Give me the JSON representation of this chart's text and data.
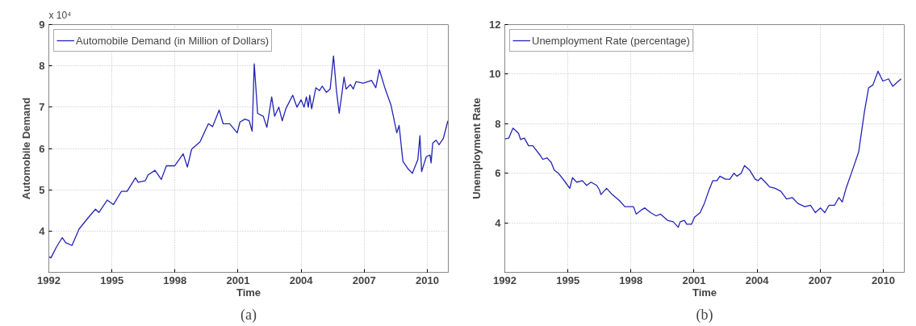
{
  "chart_data": [
    {
      "type": "line",
      "xlabel": "Time",
      "ylabel": "Automobile Demand",
      "annotations": [
        "x 10⁴",
        "(a)"
      ],
      "xlim": [
        1992,
        2011
      ],
      "xticks": [
        1992,
        1995,
        1998,
        2001,
        2004,
        2007,
        2010
      ],
      "ylim": [
        3,
        9
      ],
      "yticks": [
        4,
        5,
        6,
        7,
        8,
        9
      ],
      "grid": true,
      "legend": "top left",
      "line_style": "solid",
      "series": [
        {
          "name": "Automobile Demand (in Million of Dollars)",
          "color": "#2323b4",
          "x": [
            1992.0,
            1992.1,
            1992.37,
            1992.64,
            1992.8,
            1993.1,
            1993.44,
            1993.85,
            1994.22,
            1994.38,
            1994.78,
            1995.07,
            1995.45,
            1995.72,
            1996.12,
            1996.25,
            1996.59,
            1996.72,
            1997.05,
            1997.35,
            1997.59,
            1997.99,
            1998.39,
            1998.59,
            1998.79,
            1999.19,
            1999.59,
            1999.79,
            2000.1,
            2000.29,
            2000.6,
            2000.96,
            2001.09,
            2001.33,
            2001.53,
            2001.67,
            2001.77,
            2001.93,
            2002.2,
            2002.37,
            2002.6,
            2002.74,
            2002.94,
            2003.1,
            2003.27,
            2003.6,
            2003.8,
            2004.0,
            2004.14,
            2004.25,
            2004.34,
            2004.41,
            2004.5,
            2004.7,
            2004.87,
            2005.0,
            2005.2,
            2005.38,
            2005.54,
            2005.68,
            2005.81,
            2005.94,
            2006.04,
            2006.14,
            2006.34,
            2006.48,
            2006.61,
            2006.95,
            2007.35,
            2007.55,
            2007.72,
            2008.0,
            2008.28,
            2008.55,
            2008.66,
            2008.84,
            2009.08,
            2009.29,
            2009.55,
            2009.65,
            2009.73,
            2009.95,
            2010.13,
            2010.18,
            2010.26,
            2010.42,
            2010.56,
            2010.76,
            2010.98
          ],
          "values": [
            3.38,
            3.35,
            3.62,
            3.84,
            3.72,
            3.65,
            4.05,
            4.31,
            4.53,
            4.45,
            4.75,
            4.64,
            4.96,
            4.96,
            5.29,
            5.18,
            5.22,
            5.36,
            5.47,
            5.25,
            5.58,
            5.58,
            5.87,
            5.55,
            5.98,
            6.16,
            6.6,
            6.53,
            6.93,
            6.6,
            6.6,
            6.38,
            6.64,
            6.71,
            6.67,
            6.42,
            8.05,
            6.85,
            6.78,
            6.51,
            7.25,
            6.78,
            7.0,
            6.67,
            6.96,
            7.29,
            7.0,
            7.18,
            7.0,
            7.25,
            7.0,
            7.29,
            6.96,
            7.47,
            7.4,
            7.51,
            7.36,
            7.44,
            8.24,
            7.4,
            6.85,
            7.33,
            7.73,
            7.44,
            7.55,
            7.44,
            7.62,
            7.58,
            7.65,
            7.47,
            7.91,
            7.44,
            7.04,
            6.38,
            6.56,
            5.69,
            5.51,
            5.4,
            5.73,
            6.31,
            5.44,
            5.8,
            5.84,
            5.65,
            6.13,
            6.2,
            6.09,
            6.24,
            6.67
          ]
        }
      ]
    },
    {
      "type": "line",
      "xlabel": "Time",
      "ylabel": "Unemployment Rate",
      "annotations": [
        "(b)"
      ],
      "xlim": [
        1992,
        2011
      ],
      "xticks": [
        1992,
        1995,
        1998,
        2001,
        2004,
        2007,
        2010
      ],
      "ylim": [
        2,
        12
      ],
      "yticks": [
        4,
        6,
        8,
        10,
        12
      ],
      "grid": true,
      "legend": "top left",
      "line_style": "solid",
      "series": [
        {
          "name": "Unemployment Rate (percentage)",
          "color": "#2323b4",
          "x": [
            1992.0,
            1992.19,
            1992.39,
            1992.66,
            1992.75,
            1992.93,
            1993.13,
            1993.33,
            1993.67,
            1993.81,
            1994.01,
            1994.21,
            1994.35,
            1994.55,
            1994.88,
            1995.09,
            1995.22,
            1995.42,
            1995.69,
            1995.89,
            1996.1,
            1996.37,
            1996.5,
            1996.57,
            1996.84,
            1997.11,
            1997.45,
            1997.71,
            1998.12,
            1998.25,
            1998.52,
            1998.66,
            1998.93,
            1999.2,
            1999.4,
            1999.74,
            2000.01,
            2000.25,
            2000.34,
            2000.54,
            2000.65,
            2000.88,
            2001.02,
            2001.29,
            2001.49,
            2001.69,
            2001.89,
            2002.09,
            2002.23,
            2002.5,
            2002.7,
            2002.9,
            2003.04,
            2003.24,
            2003.4,
            2003.64,
            2003.91,
            2004.05,
            2004.18,
            2004.39,
            2004.59,
            2004.86,
            2005.13,
            2005.4,
            2005.67,
            2005.94,
            2006.27,
            2006.54,
            2006.77,
            2007.01,
            2007.22,
            2007.42,
            2007.69,
            2007.89,
            2008.05,
            2008.23,
            2008.56,
            2008.83,
            2009.1,
            2009.3,
            2009.51,
            2009.75,
            2009.98,
            2010.25,
            2010.45,
            2010.68,
            2010.85
          ],
          "values": [
            7.39,
            7.42,
            7.82,
            7.6,
            7.36,
            7.42,
            7.11,
            7.11,
            6.74,
            6.56,
            6.62,
            6.43,
            6.13,
            6.0,
            5.64,
            5.39,
            5.82,
            5.64,
            5.7,
            5.51,
            5.64,
            5.51,
            5.33,
            5.14,
            5.39,
            5.14,
            4.9,
            4.65,
            4.65,
            4.35,
            4.53,
            4.6,
            4.41,
            4.28,
            4.35,
            4.1,
            4.04,
            3.82,
            4.04,
            4.1,
            3.94,
            3.94,
            4.22,
            4.41,
            4.78,
            5.27,
            5.7,
            5.7,
            5.88,
            5.76,
            5.76,
            6.0,
            5.88,
            6.0,
            6.31,
            6.13,
            5.76,
            5.7,
            5.82,
            5.64,
            5.45,
            5.39,
            5.27,
            4.96,
            5.02,
            4.78,
            4.65,
            4.71,
            4.41,
            4.6,
            4.41,
            4.71,
            4.71,
            5.02,
            4.84,
            5.39,
            6.19,
            6.86,
            8.46,
            9.44,
            9.57,
            10.12,
            9.72,
            9.81,
            9.51,
            9.69,
            9.81
          ]
        }
      ]
    }
  ]
}
